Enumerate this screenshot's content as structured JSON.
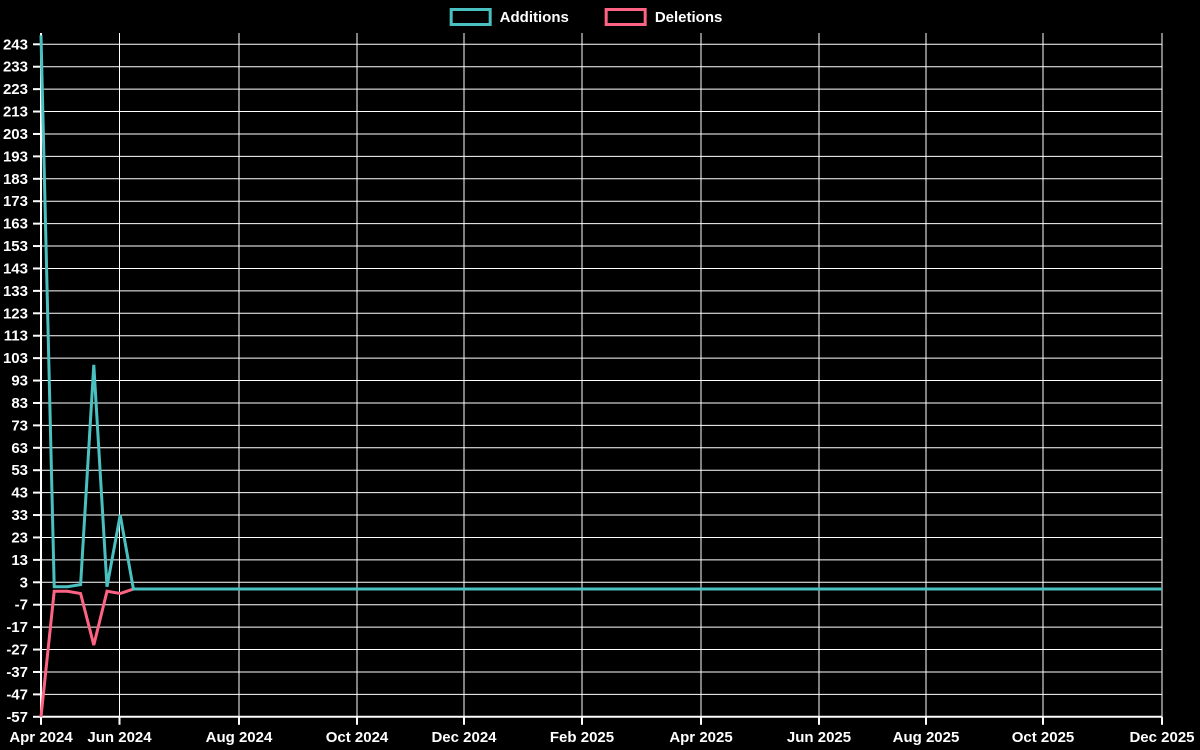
{
  "legend": {
    "items": [
      {
        "label": "Additions",
        "color": "#4bc0c0"
      },
      {
        "label": "Deletions",
        "color": "#ff6384"
      }
    ]
  },
  "chart_data": {
    "type": "line",
    "title": "",
    "xlabel": "",
    "ylabel": "",
    "legend_position": "top",
    "grid": true,
    "colors": {
      "background": "#000000",
      "grid": "#ffffff",
      "text": "#ffffff"
    },
    "x_tick_labels": [
      "Apr 2024",
      "Jun 2024",
      "Aug 2024",
      "Oct 2024",
      "Dec 2024",
      "Feb 2025",
      "Apr 2025",
      "Jun 2025",
      "Aug 2025",
      "Oct 2025",
      "Dec 2025"
    ],
    "y_ticks": [
      243,
      233,
      223,
      213,
      203,
      193,
      183,
      173,
      163,
      153,
      143,
      133,
      123,
      113,
      103,
      93,
      83,
      73,
      63,
      53,
      43,
      33,
      23,
      13,
      3,
      -7,
      -17,
      -27,
      -37,
      -47,
      -57
    ],
    "ylim": [
      -57,
      243
    ],
    "x_unit": "week (weekly points starting at Apr 2024)",
    "series": [
      {
        "name": "Additions",
        "color": "#4bc0c0",
        "weekly_values": [
          247,
          1,
          1,
          2,
          100,
          1,
          33,
          0
        ],
        "tail_value": 0,
        "tail_until": "Dec 2025"
      },
      {
        "name": "Deletions",
        "color": "#ff6384",
        "weekly_values": [
          -57,
          -1,
          -1,
          -2,
          -25,
          -1,
          -2,
          0
        ],
        "tail_value": 0,
        "tail_until": "Dec 2025"
      }
    ]
  }
}
